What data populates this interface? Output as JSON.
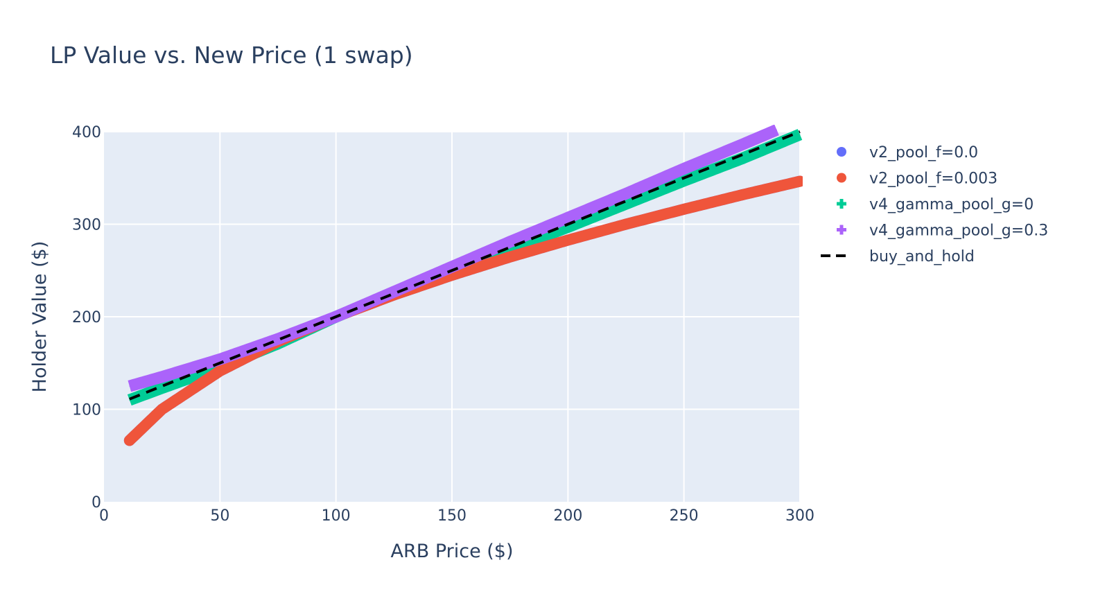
{
  "chart_data": {
    "type": "scatter",
    "title": "LP Value vs. New Price (1 swap)",
    "xlabel": "ARB Price ($)",
    "ylabel": "Holder Value ($)",
    "xlim": [
      0,
      300
    ],
    "ylim": [
      0,
      400
    ],
    "xticks": [
      0,
      50,
      100,
      150,
      200,
      250,
      300
    ],
    "yticks": [
      0,
      100,
      200,
      300,
      400
    ],
    "grid": true,
    "legend_position": "right",
    "plot_background": "#e5ecf6",
    "series": [
      {
        "name": "v2_pool_f=0.0",
        "marker": "circle",
        "color": "#636efa",
        "x": [
          11,
          25,
          50,
          75,
          100,
          125,
          150,
          175,
          200,
          225,
          250,
          275,
          300
        ],
        "y": [
          66.3,
          100,
          141.4,
          173.2,
          200,
          223.6,
          244.9,
          264.6,
          282.8,
          300,
          316.2,
          331.7,
          346.4
        ]
      },
      {
        "name": "v2_pool_f=0.003",
        "marker": "circle",
        "color": "#ef553b",
        "x": [
          11,
          25,
          50,
          75,
          100,
          125,
          150,
          175,
          200,
          225,
          250,
          275,
          300
        ],
        "y": [
          66.3,
          100,
          141.4,
          173.2,
          200,
          223.6,
          244.9,
          264.6,
          282.8,
          300,
          316.2,
          331.7,
          346.4
        ]
      },
      {
        "name": "v4_gamma_pool_g=0",
        "marker": "cross",
        "color": "#00cc96",
        "x": [
          11,
          25,
          50,
          75,
          100,
          125,
          150,
          175,
          200,
          225,
          250,
          275,
          300
        ],
        "y": [
          110,
          123,
          145.5,
          171,
          200,
          226,
          249,
          273,
          297,
          322,
          347,
          371,
          397
        ]
      },
      {
        "name": "v4_gamma_pool_g=0.3",
        "marker": "cross",
        "color": "#ab63fa",
        "x": [
          11,
          25,
          50,
          75,
          100,
          125,
          150,
          175,
          200,
          225,
          250,
          275,
          290
        ],
        "y": [
          125,
          135,
          154,
          176,
          200,
          227,
          254,
          281,
          307,
          333,
          360,
          386,
          402
        ]
      },
      {
        "name": "buy_and_hold",
        "marker": "dash-line",
        "color": "#000000",
        "x": [
          11,
          300
        ],
        "y": [
          111,
          400
        ]
      }
    ]
  }
}
